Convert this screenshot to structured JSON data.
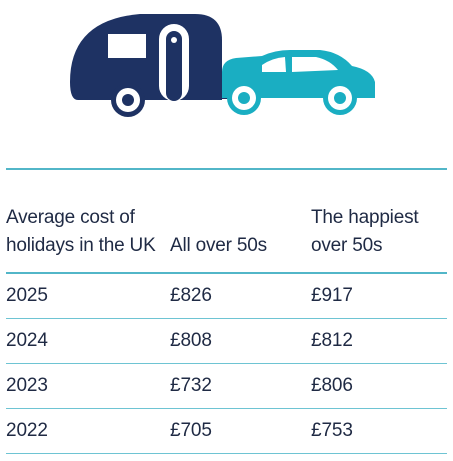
{
  "illustration": {
    "icon": "caravan-car-icon",
    "caravan_color": "#1e3263",
    "car_color": "#1aaec2"
  },
  "table": {
    "headers": [
      "Average cost of holidays in the UK",
      "All over 50s",
      "The happiest over 50s"
    ],
    "rows": [
      [
        "2025",
        "£826",
        "£917"
      ],
      [
        "2024",
        "£808",
        "£812"
      ],
      [
        "2023",
        "£732",
        "£806"
      ],
      [
        "2022",
        "£705",
        "£753"
      ]
    ]
  }
}
